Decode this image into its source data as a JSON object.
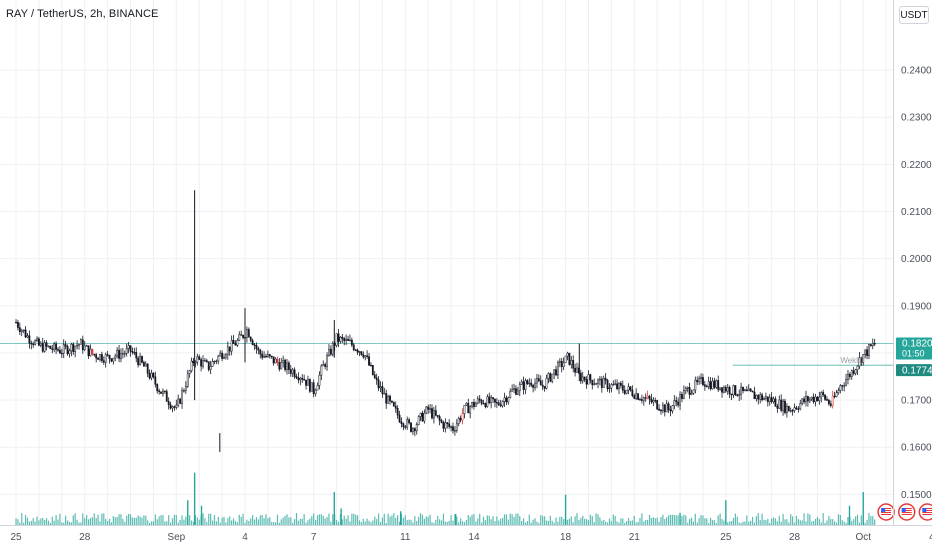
{
  "header": {
    "title": "RAY / TetherUS, 2h, BINANCE",
    "currency": "USDT"
  },
  "colors": {
    "background": "#ffffff",
    "grid": "#eef0f3",
    "candle": "#131722",
    "candle_down_accent": "#e53935",
    "volume": "#26a69a",
    "line_current": "#26a69a",
    "line_level": "#26a69a",
    "badge_current_bg": "#26a69a",
    "badge_level_bg": "#26a69a"
  },
  "chart_data": {
    "type": "candlestick",
    "ylim": [
      0.1435,
      0.2485
    ],
    "xlim": [
      -0.7,
      38.3
    ],
    "grid": true,
    "y_ticks": [
      {
        "value": 0.15,
        "label": "0.1500"
      },
      {
        "value": 0.16,
        "label": "0.1600"
      },
      {
        "value": 0.17,
        "label": "0.1700"
      },
      {
        "value": 0.18,
        "label": "0.1800"
      },
      {
        "value": 0.19,
        "label": "0.1900"
      },
      {
        "value": 0.2,
        "label": "0.2000"
      },
      {
        "value": 0.21,
        "label": "0.2100"
      },
      {
        "value": 0.22,
        "label": "0.2200"
      },
      {
        "value": 0.23,
        "label": "0.2300"
      },
      {
        "value": 0.24,
        "label": "0.2400"
      }
    ],
    "x_ticks": [
      {
        "day": 0,
        "label": "25"
      },
      {
        "day": 3,
        "label": "28"
      },
      {
        "day": 7,
        "label": "Sep"
      },
      {
        "day": 10,
        "label": "4"
      },
      {
        "day": 13,
        "label": "7"
      },
      {
        "day": 17,
        "label": "11"
      },
      {
        "day": 20,
        "label": "14"
      },
      {
        "day": 24,
        "label": "18"
      },
      {
        "day": 27,
        "label": "21"
      },
      {
        "day": 31,
        "label": "25"
      },
      {
        "day": 34,
        "label": "28"
      },
      {
        "day": 37,
        "label": "Oct"
      },
      {
        "day": 40,
        "label": "4"
      }
    ],
    "price_path": [
      [
        0,
        0.1865
      ],
      [
        0.5,
        0.1835
      ],
      [
        1,
        0.1815
      ],
      [
        2,
        0.1805
      ],
      [
        2.8,
        0.182
      ],
      [
        3.3,
        0.1798
      ],
      [
        4,
        0.179
      ],
      [
        5,
        0.1805
      ],
      [
        5.6,
        0.177
      ],
      [
        6.3,
        0.172
      ],
      [
        7,
        0.168
      ],
      [
        7.4,
        0.1735
      ],
      [
        7.8,
        0.179
      ],
      [
        8.4,
        0.177
      ],
      [
        9,
        0.18
      ],
      [
        9.7,
        0.1825
      ],
      [
        10.1,
        0.185
      ],
      [
        10.6,
        0.18
      ],
      [
        11,
        0.179
      ],
      [
        11.8,
        0.177
      ],
      [
        12.5,
        0.175
      ],
      [
        13,
        0.172
      ],
      [
        13.4,
        0.177
      ],
      [
        14,
        0.183
      ],
      [
        14.6,
        0.182
      ],
      [
        15.2,
        0.18
      ],
      [
        15.7,
        0.174
      ],
      [
        16.2,
        0.17
      ],
      [
        16.8,
        0.166
      ],
      [
        17.3,
        0.164
      ],
      [
        18,
        0.168
      ],
      [
        18.6,
        0.165
      ],
      [
        19.1,
        0.164
      ],
      [
        19.6,
        0.168
      ],
      [
        20.3,
        0.17
      ],
      [
        21,
        0.169
      ],
      [
        21.7,
        0.172
      ],
      [
        22.5,
        0.174
      ],
      [
        23,
        0.173
      ],
      [
        23.5,
        0.176
      ],
      [
        24.1,
        0.179
      ],
      [
        24.6,
        0.175
      ],
      [
        25.3,
        0.174
      ],
      [
        26,
        0.173
      ],
      [
        26.8,
        0.172
      ],
      [
        27.6,
        0.17
      ],
      [
        28.5,
        0.168
      ],
      [
        29.3,
        0.172
      ],
      [
        30,
        0.174
      ],
      [
        30.7,
        0.173
      ],
      [
        31.3,
        0.172
      ],
      [
        32.2,
        0.171
      ],
      [
        33,
        0.17
      ],
      [
        33.8,
        0.168
      ],
      [
        34.5,
        0.17
      ],
      [
        35.2,
        0.171
      ],
      [
        35.6,
        0.169
      ],
      [
        36,
        0.173
      ],
      [
        36.5,
        0.176
      ],
      [
        36.9,
        0.179
      ],
      [
        37.2,
        0.1805
      ],
      [
        37.5,
        0.182
      ]
    ],
    "spikes": [
      {
        "day": 7.8,
        "high": 0.2145,
        "low": 0.17
      },
      {
        "day": 8.9,
        "high": 0.163,
        "low": 0.159
      },
      {
        "day": 10.0,
        "high": 0.1895,
        "low": 0.178
      },
      {
        "day": 13.9,
        "high": 0.187,
        "low": 0.179
      },
      {
        "day": 24.6,
        "high": 0.182,
        "low": 0.174
      }
    ],
    "volume_spikes": [
      {
        "day": 7.8,
        "rel": 0.95
      },
      {
        "day": 7.5,
        "rel": 0.45
      },
      {
        "day": 8.1,
        "rel": 0.35
      },
      {
        "day": 13.9,
        "rel": 0.6
      },
      {
        "day": 14.2,
        "rel": 0.3
      },
      {
        "day": 24.0,
        "rel": 0.55
      },
      {
        "day": 31.0,
        "rel": 0.45
      },
      {
        "day": 37.0,
        "rel": 0.6
      },
      {
        "day": 36.4,
        "rel": 0.35
      },
      {
        "day": 16.8,
        "rel": 0.25
      },
      {
        "day": 19.2,
        "rel": 0.2
      },
      {
        "day": 29.0,
        "rel": 0.22
      }
    ],
    "h_lines": [
      {
        "name": "current-price-line",
        "value": 0.182,
        "from_day": -0.7
      },
      {
        "name": "weekly-high-line",
        "value": 0.1774,
        "from_day": 31.3
      }
    ],
    "annotations": [
      {
        "text": "WekH",
        "day": 36.0,
        "value": 0.1774
      }
    ],
    "price_labels": {
      "current_price": "0.1820",
      "countdown": "01:50",
      "level_price": "0.1774"
    },
    "event_markers": [
      {
        "day": 38.0,
        "flag": "us"
      },
      {
        "day": 38.9,
        "flag": "us"
      },
      {
        "day": 39.8,
        "flag": "us"
      }
    ]
  }
}
